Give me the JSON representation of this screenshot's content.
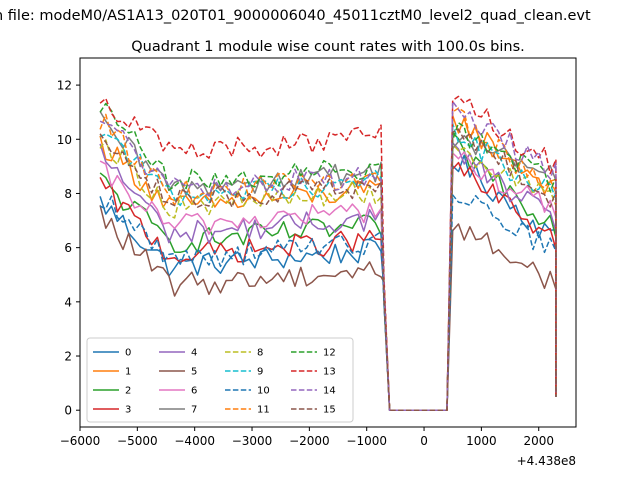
{
  "chart_data": {
    "type": "line",
    "suptitle": "n file: modeM0/AS1A13_020T01_9000006040_45011cztM0_level2_quad_clean.evt",
    "title": "Quadrant 1 module wise count rates with 100.0s bins.",
    "xlabel": "",
    "ylabel": "",
    "x_offset_label": "+4.438e8",
    "xlim": [
      -6000,
      2650
    ],
    "ylim": [
      -0.62,
      13.0
    ],
    "xticks": [
      -6000,
      -5000,
      -4000,
      -3000,
      -2000,
      -1000,
      0,
      1000,
      2000
    ],
    "xtick_labels": [
      "−6000",
      "−5000",
      "−4000",
      "−3000",
      "−2000",
      "−1000",
      "0",
      "1000",
      "2000"
    ],
    "yticks": [
      0,
      2,
      4,
      6,
      8,
      10,
      12
    ],
    "ytick_labels": [
      "0",
      "2",
      "4",
      "6",
      "8",
      "10",
      "12"
    ],
    "grid": false,
    "legend": {
      "placement": "lower-left",
      "ncol": 4
    },
    "segments": [
      {
        "x_start": -5650,
        "x_end": -800,
        "step": 100
      },
      {
        "x_start": 450,
        "x_end": 2250,
        "step": 100
      }
    ],
    "gap": {
      "points": [
        [
          -800,
          null
        ],
        [
          -700,
          4.5
        ],
        [
          -600,
          0
        ],
        [
          -500,
          0
        ],
        [
          -400,
          0
        ],
        [
          -300,
          0
        ],
        [
          -200,
          0
        ],
        [
          -100,
          0
        ],
        [
          0,
          0
        ],
        [
          100,
          0
        ],
        [
          200,
          0
        ],
        [
          300,
          0
        ],
        [
          400,
          0
        ],
        [
          450,
          null
        ]
      ],
      "x_drop_end": 2300,
      "y_drop_end": 0.5
    },
    "series": [
      {
        "name": "0",
        "color": "#1f77b4",
        "dash": "solid",
        "start": 7.7,
        "end": 5.9,
        "peak2": 9.3,
        "end2": 6.3
      },
      {
        "name": "1",
        "color": "#ff7f0e",
        "dash": "solid",
        "start": 9.9,
        "end": 8.1,
        "peak2": 10.8,
        "end2": 8.1
      },
      {
        "name": "2",
        "color": "#2ca02c",
        "dash": "solid",
        "start": 8.5,
        "end": 6.8,
        "peak2": 9.8,
        "end2": 6.8
      },
      {
        "name": "3",
        "color": "#d62728",
        "dash": "solid",
        "start": 8.3,
        "end": 6.3,
        "peak2": 9.0,
        "end2": 6.3
      },
      {
        "name": "4",
        "color": "#9467bd",
        "dash": "solid",
        "start": 9.5,
        "end": 7.1,
        "peak2": 9.6,
        "end2": 6.9
      },
      {
        "name": "5",
        "color": "#8c564b",
        "dash": "solid",
        "start": 7.2,
        "end": 5.2,
        "peak2": 6.9,
        "end2": 4.7
      },
      {
        "name": "6",
        "color": "#e377c2",
        "dash": "solid",
        "start": 8.8,
        "end": 7.4,
        "peak2": 9.4,
        "end2": 7.3
      },
      {
        "name": "7",
        "color": "#7f7f7f",
        "dash": "solid",
        "start": 10.6,
        "end": 8.8,
        "peak2": 10.1,
        "end2": 8.6
      },
      {
        "name": "8",
        "color": "#bcbd22",
        "dash": "dashed",
        "start": 10.1,
        "end": 8.1,
        "peak2": 9.9,
        "end2": 7.6
      },
      {
        "name": "9",
        "color": "#17becf",
        "dash": "dashed",
        "start": 10.5,
        "end": 8.5,
        "peak2": 10.3,
        "end2": 7.8
      },
      {
        "name": "10",
        "color": "#1f77b4",
        "dash": "dashed",
        "start": 7.9,
        "end": 6.2,
        "peak2": 8.2,
        "end2": 5.8
      },
      {
        "name": "11",
        "color": "#ff7f0e",
        "dash": "dashed",
        "start": 10.7,
        "end": 8.6,
        "peak2": 10.9,
        "end2": 7.9
      },
      {
        "name": "12",
        "color": "#2ca02c",
        "dash": "dashed",
        "start": 11.3,
        "end": 9.0,
        "peak2": 10.4,
        "end2": 8.4
      },
      {
        "name": "13",
        "color": "#d62728",
        "dash": "dashed",
        "start": 11.6,
        "end": 10.1,
        "peak2": 11.5,
        "end2": 9.0
      },
      {
        "name": "14",
        "color": "#9467bd",
        "dash": "dashed",
        "start": 10.9,
        "end": 8.7,
        "peak2": 11.1,
        "end2": 8.8
      },
      {
        "name": "15",
        "color": "#8c564b",
        "dash": "dashed",
        "start": 10.4,
        "end": 8.3,
        "peak2": 10.5,
        "end2": 7.7
      }
    ]
  }
}
